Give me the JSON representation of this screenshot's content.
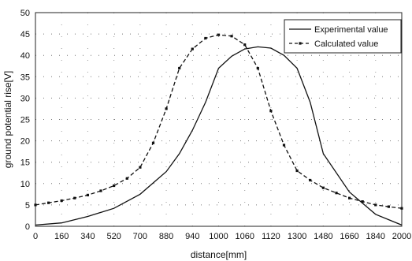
{
  "chart_data": {
    "type": "line",
    "title": "",
    "xlabel": "distance[mm]",
    "ylabel": "ground potential rise[V]",
    "x_ticks": [
      "0",
      "160",
      "340",
      "520",
      "700",
      "880",
      "940",
      "1000",
      "1060",
      "1120",
      "1300",
      "1480",
      "1660",
      "1840",
      "2000"
    ],
    "ylim": [
      0,
      50
    ],
    "y_ticks": [
      "0",
      "5",
      "10",
      "15",
      "20",
      "25",
      "30",
      "35",
      "40",
      "45",
      "50"
    ],
    "grid": "dotted",
    "legend_position": "top-right",
    "series": [
      {
        "name": "Experimental value",
        "style": "solid",
        "color": "#111111",
        "x": [
          0,
          1,
          2,
          3,
          4,
          5,
          5.5,
          6,
          6.5,
          7,
          7.5,
          8,
          8.5,
          9,
          9.5,
          10,
          10.5,
          11,
          12,
          13,
          14
        ],
        "y": [
          0.3,
          0.8,
          2.3,
          4.2,
          7.5,
          12.8,
          17.0,
          22.5,
          29.0,
          37.0,
          39.8,
          41.5,
          42.0,
          41.7,
          40.0,
          37.0,
          29.0,
          17.0,
          8.0,
          2.8,
          0.3
        ]
      },
      {
        "name": "Calculated value",
        "style": "dashed",
        "color": "#111111",
        "x": [
          0,
          0.5,
          1,
          1.5,
          2,
          2.5,
          3,
          3.5,
          4,
          4.5,
          5,
          5.5,
          6,
          6.5,
          7,
          7.5,
          8,
          8.5,
          9,
          9.5,
          10,
          10.5,
          11,
          11.5,
          12,
          12.5,
          13,
          13.5,
          14
        ],
        "y": [
          5.0,
          5.5,
          6.0,
          6.6,
          7.3,
          8.3,
          9.5,
          11.2,
          13.8,
          19.5,
          27.5,
          37.0,
          41.5,
          44.0,
          44.8,
          44.5,
          42.5,
          37.0,
          27.0,
          19.0,
          13.0,
          10.8,
          9.0,
          7.8,
          6.6,
          5.8,
          5.0,
          4.6,
          4.2
        ]
      }
    ]
  }
}
